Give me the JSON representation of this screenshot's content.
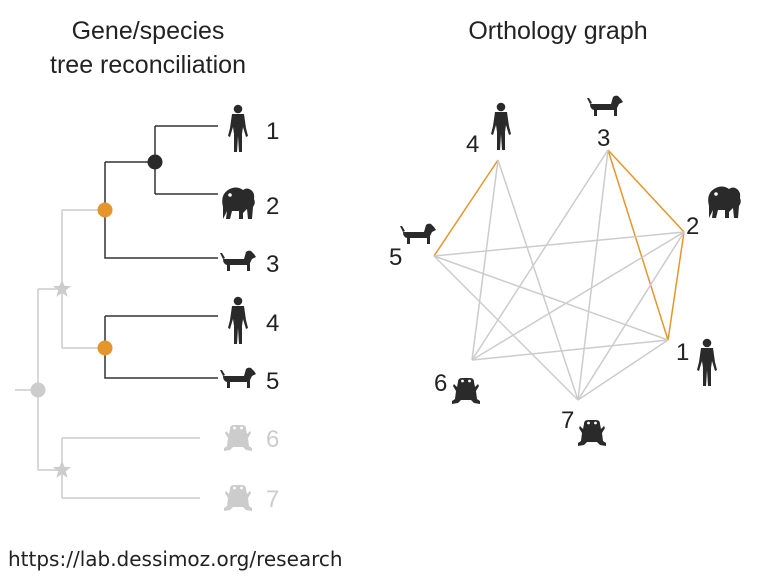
{
  "titles": {
    "left_line1": "Gene/species",
    "left_line2": "tree reconciliation",
    "right": "Orthology graph"
  },
  "source": "https://lab.dessimoz.org/research",
  "colors": {
    "dark": "#333333",
    "faded": "#cccccc",
    "duplication": "#e5962b",
    "speciation": "#2a2a2a",
    "edge": "#cccccc",
    "ortholog_edge": "#e5962b"
  },
  "tree": {
    "leaves": [
      {
        "label": "1",
        "species": "human-icon"
      },
      {
        "label": "2",
        "species": "gorilla-icon"
      },
      {
        "label": "3",
        "species": "dog-icon"
      },
      {
        "label": "4",
        "species": "human-icon"
      },
      {
        "label": "5",
        "species": "dog-icon"
      },
      {
        "label": "6",
        "species": "frog-icon"
      },
      {
        "label": "7",
        "species": "frog-icon"
      }
    ]
  },
  "graph": {
    "nodes": [
      {
        "label": "1",
        "species": "human-icon"
      },
      {
        "label": "2",
        "species": "gorilla-icon"
      },
      {
        "label": "3",
        "species": "dog-icon"
      },
      {
        "label": "4",
        "species": "human-icon"
      },
      {
        "label": "5",
        "species": "dog-icon"
      },
      {
        "label": "6",
        "species": "frog-icon"
      },
      {
        "label": "7",
        "species": "frog-icon"
      }
    ],
    "edges": [
      [
        "4",
        "5",
        "ortholog"
      ],
      [
        "3",
        "2",
        "ortholog"
      ],
      [
        "3",
        "1",
        "ortholog"
      ],
      [
        "2",
        "1",
        "ortholog"
      ],
      [
        "4",
        "6",
        "plain"
      ],
      [
        "4",
        "7",
        "plain"
      ],
      [
        "5",
        "1",
        "plain"
      ],
      [
        "5",
        "2",
        "plain"
      ],
      [
        "5",
        "7",
        "plain"
      ],
      [
        "3",
        "6",
        "plain"
      ],
      [
        "3",
        "7",
        "plain"
      ],
      [
        "2",
        "6",
        "plain"
      ],
      [
        "2",
        "7",
        "plain"
      ],
      [
        "1",
        "6",
        "plain"
      ],
      [
        "1",
        "7",
        "plain"
      ]
    ]
  }
}
